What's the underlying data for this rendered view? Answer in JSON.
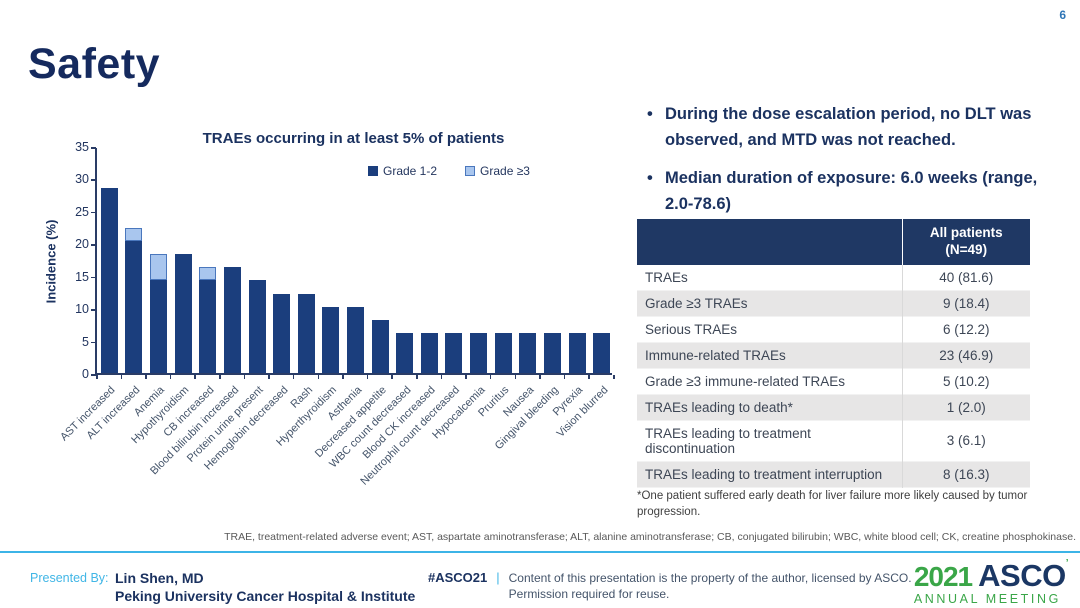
{
  "page_number": "6",
  "title": "Safety",
  "chart_data": {
    "type": "bar",
    "stacked": true,
    "title": "TRAEs occurring in at least 5% of patients",
    "ylabel": "Incidence (%)",
    "ylim": [
      0,
      35
    ],
    "ytick_step": 5,
    "grid": false,
    "legend_position": "top-right",
    "categories": [
      "AST increased",
      "ALT increased",
      "Anemia",
      "Hypothyroidism",
      "CB increased",
      "Blood bilirubin increased",
      "Protein urine present",
      "Hemoglobin decreased",
      "Rash",
      "Hyperthyroidism",
      "Asthenia",
      "Decreased appetite",
      "WBC count decreased",
      "Blood CK increased",
      "Neutrophil count decreased",
      "Hypocalcemia",
      "Pruritus",
      "Nausea",
      "Gingival bleeding",
      "Pyrexia",
      "Vision blurred"
    ],
    "series": [
      {
        "name": "Grade 1-2",
        "color": "#1b3e7d",
        "values": [
          28.6,
          20.4,
          14.3,
          18.4,
          14.3,
          16.3,
          14.3,
          12.2,
          12.2,
          10.2,
          10.2,
          8.2,
          6.1,
          6.1,
          6.1,
          6.1,
          6.1,
          6.1,
          6.1,
          6.1,
          6.1
        ]
      },
      {
        "name": "Grade ≥3",
        "color": "#a9c6ee",
        "border_color": "#4a77bd",
        "values": [
          0,
          2.0,
          4.1,
          0,
          2.0,
          0,
          0,
          0,
          0,
          0,
          0,
          0,
          0,
          0,
          0,
          0,
          0,
          0,
          0,
          0,
          0
        ]
      }
    ]
  },
  "bullets": [
    "During the dose escalation period, no DLT was observed, and MTD was not reached.",
    "Median duration of exposure: 6.0 weeks (range, 2.0-78.6)"
  ],
  "table": {
    "header_line1": "All patients",
    "header_line2": "(N=49)",
    "rows": [
      {
        "label": "TRAEs",
        "value": "40 (81.6)"
      },
      {
        "label": "Grade ≥3 TRAEs",
        "value": "9 (18.4)"
      },
      {
        "label": "Serious TRAEs",
        "value": "6 (12.2)"
      },
      {
        "label": "Immune-related TRAEs",
        "value": "23 (46.9)"
      },
      {
        "label": "Grade ≥3 immune-related TRAEs",
        "value": "5 (10.2)"
      },
      {
        "label": "TRAEs leading to death*",
        "value": "1 (2.0)"
      },
      {
        "label": "TRAEs leading to treatment discontinuation",
        "value": "3 (6.1)"
      },
      {
        "label": "TRAEs leading to treatment interruption",
        "value": "8 (16.3)"
      }
    ]
  },
  "footnote": "*One patient suffered early death for liver failure more likely caused by tumor progression.",
  "abbreviations": "TRAE, treatment-related adverse event; AST, aspartate aminotransferase; ALT, alanine aminotransferase; CB, conjugated bilirubin; WBC, white blood cell; CK, creatine phosphokinase.",
  "footer": {
    "presented_by_label": "Presented By:",
    "presenter_name": "Lin Shen, MD",
    "presenter_affiliation": "Peking University Cancer Hospital & Institute",
    "hashtag": "#ASCO21",
    "pipe": "|",
    "license_line1": "Content of this presentation is the property of the author, licensed by ASCO.",
    "license_line2": "Permission required for reuse.",
    "logo_year": "2021",
    "logo_org": "ASCO",
    "logo_event": "ANNUAL MEETING"
  },
  "colors": {
    "navy_text": "#1b3260",
    "bar_dark": "#1b3e7d",
    "bar_light": "#a9c6ee",
    "bar_light_border": "#4a77bd",
    "table_header_bg": "#1f3864",
    "table_alt_row": "#e7e6e6",
    "accent_light_blue": "#3cb4e7",
    "logo_green": "#3aa648"
  }
}
